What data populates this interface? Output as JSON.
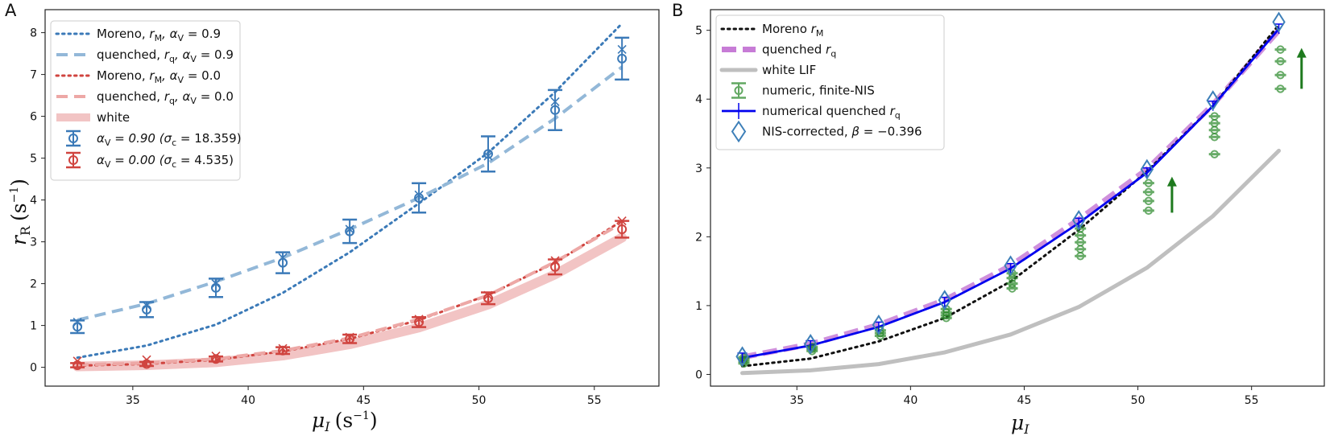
{
  "colors": {
    "blue": "#3b7ab8",
    "blue_light": "#93b8d8",
    "red": "#d0443f",
    "red_light": "#eda8a6",
    "white_band": "#f2c4c4",
    "black": "#111111",
    "magenta": "#c77cd6",
    "gray": "#bfbfbf",
    "green": "#2e8b2e",
    "num_blue": "#0000ee",
    "diamond": "#3d7fb8"
  },
  "chart_data": [
    {
      "panel_label": "A",
      "type": "line",
      "xlabel_sym": "μ",
      "xlabel_sub": "I",
      "xlabel_unit": "(s",
      "xlabel_exp": "−1",
      "xlabel_close": ")",
      "ylabel_sym": "r",
      "ylabel_sub": "R",
      "ylabel_unit": "(s",
      "ylabel_exp": "−1",
      "ylabel_close": ")",
      "xlim": [
        31.2,
        57.8
      ],
      "ylim": [
        -0.45,
        8.55
      ],
      "xticks": [
        35,
        40,
        45,
        50,
        55
      ],
      "yticks": [
        0,
        1,
        2,
        3,
        4,
        5,
        6,
        7,
        8
      ],
      "x": [
        32.6,
        35.6,
        38.6,
        41.5,
        44.4,
        47.4,
        50.4,
        53.3,
        56.2
      ],
      "series": [
        {
          "name": "Moreno_a09",
          "label_pre": "Moreno, ",
          "label_math": "r_M, α_V = 0.9",
          "legend_parts": [
            "Moreno, ",
            "r",
            "M",
            ", α",
            "V",
            " = 0.9"
          ],
          "style": "dotted",
          "color": "blue",
          "values": [
            0.23,
            0.52,
            1.02,
            1.78,
            2.75,
            3.92,
            5.13,
            6.58,
            8.22
          ]
        },
        {
          "name": "quenched_a09",
          "legend_parts": [
            "quenched, ",
            "r",
            "q",
            ", α",
            "V",
            " = 0.9"
          ],
          "style": "dashed",
          "color": "blue_light",
          "values": [
            1.13,
            1.52,
            2.05,
            2.62,
            3.3,
            4.05,
            4.88,
            5.95,
            7.18
          ]
        },
        {
          "name": "Moreno_a00",
          "legend_parts": [
            "Moreno, ",
            "r",
            "M",
            ", α",
            "V",
            " = 0.0"
          ],
          "style": "dotted",
          "color": "red",
          "values": [
            0.04,
            0.08,
            0.18,
            0.38,
            0.68,
            1.13,
            1.73,
            2.5,
            3.5
          ]
        },
        {
          "name": "quenched_a00",
          "legend_parts": [
            "quenched, ",
            "r",
            "q",
            ", α",
            "V",
            " = 0.0"
          ],
          "style": "dashed",
          "color": "red_light",
          "values": [
            0.06,
            0.1,
            0.2,
            0.4,
            0.7,
            1.15,
            1.72,
            2.52,
            3.45
          ]
        },
        {
          "name": "white",
          "legend_parts": [
            "white"
          ],
          "style": "band",
          "color": "white_band",
          "values": [
            0.02,
            0.05,
            0.12,
            0.28,
            0.55,
            0.95,
            1.5,
            2.22,
            3.1
          ]
        }
      ],
      "errorbars": [
        {
          "name": "eb_a09",
          "legend_parts": [
            "α",
            "V",
            " = 0.90 (σ",
            "c",
            " = 18.359)"
          ],
          "color": "blue",
          "values": [
            0.97,
            1.38,
            1.9,
            2.5,
            3.25,
            4.05,
            5.1,
            6.15,
            7.38
          ],
          "errors": [
            0.15,
            0.18,
            0.22,
            0.25,
            0.28,
            0.35,
            0.42,
            0.48,
            0.5
          ],
          "crosses": [
            1.08,
            1.48,
            2.0,
            2.62,
            3.3,
            4.12,
            5.05,
            6.35,
            7.6
          ]
        },
        {
          "name": "eb_a00",
          "legend_parts": [
            "α",
            "V",
            " = 0.00 (σ",
            "c",
            " = 4.535)"
          ],
          "color": "red",
          "values": [
            0.05,
            0.08,
            0.2,
            0.4,
            0.68,
            1.08,
            1.65,
            2.4,
            3.3
          ],
          "errors": [
            0.05,
            0.05,
            0.06,
            0.08,
            0.1,
            0.12,
            0.14,
            0.18,
            0.2
          ],
          "crosses": [
            0.15,
            0.18,
            0.27,
            0.45,
            0.72,
            1.15,
            1.72,
            2.55,
            3.5
          ]
        }
      ]
    },
    {
      "panel_label": "B",
      "type": "line",
      "xlabel_sym": "μ",
      "xlabel_sub": "I",
      "xlim": [
        31.2,
        58.2
      ],
      "ylim": [
        -0.17,
        5.3
      ],
      "xticks": [
        35,
        40,
        45,
        50,
        55
      ],
      "yticks": [
        0,
        1,
        2,
        3,
        4,
        5
      ],
      "x": [
        32.6,
        35.6,
        38.6,
        41.5,
        44.4,
        47.4,
        50.4,
        53.3,
        56.2
      ],
      "series": [
        {
          "name": "moreno_rM",
          "legend_parts": [
            "Moreno ",
            "r",
            "M"
          ],
          "style": "dotted",
          "color": "black",
          "values": [
            0.12,
            0.23,
            0.48,
            0.82,
            1.35,
            2.1,
            2.95,
            3.9,
            5.08
          ]
        },
        {
          "name": "quenched_rq",
          "legend_parts": [
            "quenched ",
            "r",
            "q"
          ],
          "style": "dashed_thick",
          "color": "magenta",
          "values": [
            0.25,
            0.44,
            0.72,
            1.08,
            1.58,
            2.25,
            2.98,
            3.92,
            5.0
          ]
        },
        {
          "name": "white_lif",
          "legend_parts": [
            "white LIF"
          ],
          "style": "solid_thick",
          "color": "gray",
          "values": [
            0.02,
            0.06,
            0.15,
            0.32,
            0.58,
            0.98,
            1.55,
            2.3,
            3.25
          ]
        },
        {
          "name": "numerical_quenched",
          "legend_parts": [
            "numerical quenched ",
            "r",
            "q"
          ],
          "style": "solid",
          "color": "num_blue",
          "values": [
            0.24,
            0.42,
            0.69,
            1.05,
            1.54,
            2.2,
            2.93,
            3.9,
            5.02
          ]
        }
      ],
      "green_points": {
        "legend_parts": [
          "numeric, finite-NIS"
        ],
        "color": "green",
        "columns": [
          [
            0.16,
            0.19,
            0.22,
            0.25
          ],
          [
            0.34,
            0.37,
            0.4
          ],
          [
            0.56,
            0.6,
            0.64
          ],
          [
            0.82,
            0.86,
            0.9,
            0.95
          ],
          [
            1.25,
            1.32,
            1.4,
            1.47
          ],
          [
            1.72,
            1.82,
            1.92,
            2.02,
            2.12
          ],
          [
            2.38,
            2.52,
            2.65,
            2.78
          ],
          [
            3.2,
            3.45,
            3.55,
            3.65,
            3.75
          ],
          [
            4.15,
            4.35,
            4.55,
            4.72
          ]
        ]
      },
      "diamonds": {
        "legend_parts": [
          "NIS-corrected, ",
          "β",
          " = −0.396"
        ],
        "color": "diamond",
        "values": [
          0.26,
          0.44,
          0.72,
          1.08,
          1.58,
          2.24,
          2.98,
          3.98,
          5.12
        ]
      },
      "arrows": [
        {
          "x": 51.5,
          "from": 2.35,
          "to": 2.85
        },
        {
          "x": 57.2,
          "from": 4.15,
          "to": 4.72
        }
      ]
    }
  ]
}
